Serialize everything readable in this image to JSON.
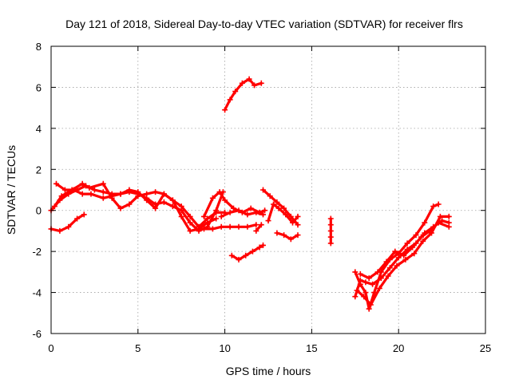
{
  "chart_data": {
    "type": "scatter",
    "title": "Day 121 of 2018, Sidereal Day-to-day VTEC variation (SDTVAR) for receiver flrs",
    "xlabel": "GPS time / hours",
    "ylabel": "SDTVAR / TECUs",
    "xlim": [
      0,
      25
    ],
    "ylim": [
      -6,
      8
    ],
    "x_ticks": [
      "0",
      "5",
      "10",
      "15",
      "20",
      "25"
    ],
    "y_ticks": [
      "-6",
      "-4",
      "-2",
      "0",
      "2",
      "4",
      "6",
      "8"
    ],
    "grid": true,
    "marker": "plus",
    "series_color": "#ff0000",
    "series": [
      {
        "points": [
          [
            0,
            0.0
          ],
          [
            0.5,
            0.5
          ],
          [
            1.0,
            0.8
          ],
          [
            1.5,
            1.0
          ],
          [
            2.0,
            1.2
          ],
          [
            2.5,
            1.0
          ],
          [
            3.0,
            0.9
          ],
          [
            3.5,
            0.8
          ],
          [
            4.0,
            0.8
          ],
          [
            4.5,
            0.9
          ],
          [
            5.0,
            0.8
          ],
          [
            5.5,
            0.6
          ],
          [
            6.0,
            0.3
          ],
          [
            6.5,
            0.4
          ],
          [
            7.0,
            0.2
          ],
          [
            7.5,
            0.0
          ],
          [
            8.0,
            -0.6
          ],
          [
            8.5,
            -1.0
          ],
          [
            9.0,
            -0.8
          ],
          [
            9.5,
            0.0
          ],
          [
            9.9,
            0.9
          ]
        ]
      },
      {
        "points": [
          [
            0.2,
            0.2
          ],
          [
            0.6,
            0.7
          ],
          [
            1.2,
            1.0
          ],
          [
            1.8,
            1.3
          ],
          [
            2.2,
            1.1
          ],
          [
            3.0,
            1.3
          ],
          [
            3.5,
            0.6
          ],
          [
            4.0,
            0.1
          ],
          [
            4.5,
            0.3
          ],
          [
            5.0,
            0.7
          ],
          [
            5.5,
            0.8
          ],
          [
            6.0,
            0.9
          ],
          [
            6.5,
            0.8
          ],
          [
            7.0,
            0.5
          ],
          [
            7.5,
            0.2
          ],
          [
            8.0,
            -0.3
          ],
          [
            8.5,
            -0.8
          ],
          [
            9.0,
            -0.4
          ],
          [
            9.5,
            -0.1
          ],
          [
            10.0,
            -0.1
          ]
        ]
      },
      {
        "points": [
          [
            0.3,
            1.3
          ],
          [
            0.8,
            1.0
          ],
          [
            1.3,
            1.0
          ],
          [
            1.8,
            0.8
          ],
          [
            2.3,
            0.8
          ],
          [
            3.0,
            0.6
          ],
          [
            3.5,
            0.7
          ],
          [
            4.0,
            0.8
          ],
          [
            4.5,
            1.0
          ],
          [
            5.0,
            0.9
          ],
          [
            5.5,
            0.5
          ],
          [
            6.0,
            0.1
          ],
          [
            6.5,
            0.8
          ],
          [
            7.0,
            0.5
          ],
          [
            7.5,
            -0.3
          ],
          [
            8.0,
            -1.0
          ],
          [
            8.5,
            -0.9
          ],
          [
            9.0,
            -0.6
          ],
          [
            9.5,
            -0.4
          ]
        ]
      },
      {
        "points": [
          [
            0,
            -0.9
          ],
          [
            0.5,
            -1.0
          ],
          [
            1.0,
            -0.8
          ],
          [
            1.5,
            -0.4
          ],
          [
            1.9,
            -0.2
          ]
        ]
      },
      {
        "points": [
          [
            8.8,
            -0.3
          ],
          [
            9.3,
            0.6
          ],
          [
            9.7,
            0.9
          ],
          [
            10.0,
            0.5
          ],
          [
            10.5,
            0.1
          ],
          [
            11.0,
            -0.1
          ],
          [
            11.5,
            0.1
          ],
          [
            12.0,
            -0.1
          ],
          [
            12.3,
            0.0
          ]
        ]
      },
      {
        "points": [
          [
            8.8,
            -0.9
          ],
          [
            9.3,
            -0.9
          ],
          [
            9.8,
            -0.8
          ],
          [
            10.3,
            -0.8
          ],
          [
            10.8,
            -0.8
          ],
          [
            11.3,
            -0.8
          ],
          [
            11.8,
            -0.7
          ]
        ]
      },
      {
        "points": [
          [
            9.8,
            -0.3
          ],
          [
            10.3,
            -0.1
          ],
          [
            10.8,
            0.0
          ],
          [
            11.3,
            -0.2
          ],
          [
            11.8,
            -0.1
          ],
          [
            12.2,
            -0.2
          ]
        ]
      },
      {
        "points": [
          [
            10.0,
            4.9
          ],
          [
            10.3,
            5.4
          ],
          [
            10.6,
            5.8
          ],
          [
            11.0,
            6.2
          ],
          [
            11.4,
            6.4
          ],
          [
            11.7,
            6.1
          ],
          [
            12.1,
            6.2
          ]
        ]
      },
      {
        "points": [
          [
            10.4,
            -2.2
          ],
          [
            10.8,
            -2.4
          ],
          [
            11.2,
            -2.2
          ],
          [
            11.6,
            -2.0
          ],
          [
            12.0,
            -1.8
          ],
          [
            12.2,
            -1.7
          ]
        ]
      },
      {
        "points": [
          [
            12.2,
            1.0
          ],
          [
            12.6,
            0.7
          ],
          [
            13.0,
            0.4
          ],
          [
            13.4,
            0.1
          ],
          [
            13.8,
            -0.3
          ],
          [
            14.2,
            -0.7
          ]
        ]
      },
      {
        "points": [
          [
            12.5,
            -0.5
          ],
          [
            12.8,
            0.3
          ],
          [
            13.1,
            0.1
          ],
          [
            13.5,
            -0.2
          ],
          [
            13.9,
            -0.6
          ],
          [
            14.2,
            -0.3
          ]
        ]
      },
      {
        "points": [
          [
            11.8,
            -1.0
          ],
          [
            12.1,
            -0.7
          ]
        ]
      },
      {
        "points": [
          [
            13.0,
            -1.1
          ],
          [
            13.4,
            -1.2
          ],
          [
            13.8,
            -1.4
          ],
          [
            14.2,
            -1.2
          ]
        ]
      },
      {
        "points": [
          [
            16.1,
            -0.4
          ],
          [
            16.1,
            -0.7
          ],
          [
            16.1,
            -1.0
          ],
          [
            16.1,
            -1.3
          ],
          [
            16.1,
            -1.6
          ]
        ]
      },
      {
        "points": [
          [
            17.5,
            -3.0
          ],
          [
            17.8,
            -3.6
          ],
          [
            18.1,
            -4.0
          ],
          [
            18.3,
            -4.8
          ],
          [
            18.6,
            -4.0
          ],
          [
            19.0,
            -3.0
          ],
          [
            19.5,
            -2.4
          ],
          [
            20.0,
            -2.1
          ],
          [
            20.5,
            -1.6
          ],
          [
            21.0,
            -1.2
          ],
          [
            21.5,
            -0.6
          ],
          [
            22.0,
            0.2
          ],
          [
            22.3,
            0.3
          ]
        ]
      },
      {
        "points": [
          [
            17.5,
            -4.2
          ],
          [
            17.8,
            -3.4
          ],
          [
            18.1,
            -3.5
          ],
          [
            18.5,
            -3.6
          ],
          [
            19.0,
            -3.3
          ],
          [
            19.5,
            -2.8
          ],
          [
            20.0,
            -2.3
          ],
          [
            20.5,
            -1.9
          ],
          [
            21.0,
            -1.6
          ],
          [
            21.5,
            -1.1
          ],
          [
            22.0,
            -0.8
          ],
          [
            22.5,
            -0.5
          ],
          [
            22.9,
            -0.6
          ]
        ]
      },
      {
        "points": [
          [
            17.6,
            -3.9
          ],
          [
            18.0,
            -4.2
          ],
          [
            18.4,
            -4.6
          ],
          [
            18.9,
            -3.8
          ],
          [
            19.4,
            -3.2
          ],
          [
            19.9,
            -2.7
          ],
          [
            20.4,
            -2.4
          ],
          [
            20.9,
            -2.1
          ],
          [
            21.4,
            -1.5
          ],
          [
            21.9,
            -1.1
          ],
          [
            22.4,
            -0.3
          ],
          [
            22.9,
            -0.3
          ]
        ]
      },
      {
        "points": [
          [
            17.8,
            -3.1
          ],
          [
            18.3,
            -3.3
          ],
          [
            18.8,
            -3.0
          ],
          [
            19.3,
            -2.5
          ],
          [
            19.8,
            -2.0
          ],
          [
            20.3,
            -2.2
          ],
          [
            20.8,
            -1.8
          ],
          [
            21.3,
            -1.3
          ],
          [
            21.8,
            -1.0
          ],
          [
            22.3,
            -0.6
          ],
          [
            22.9,
            -0.8
          ]
        ]
      }
    ]
  }
}
